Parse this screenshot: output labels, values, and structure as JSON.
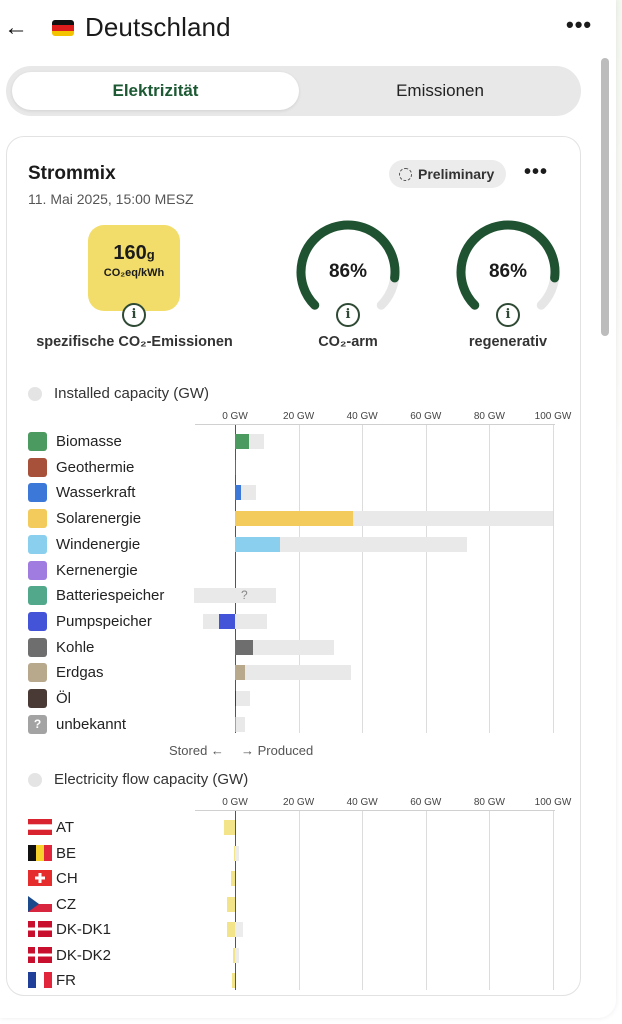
{
  "header": {
    "back_icon": "arrow-left-icon",
    "zone_name": "Deutschland",
    "more_icon": "more-horizontal-icon"
  },
  "tabs": [
    {
      "label": "Elektrizität",
      "active": true
    },
    {
      "label": "Emissionen",
      "active": false
    }
  ],
  "card": {
    "title": "Strommix",
    "date": "11. Mai 2025, 15:00 MESZ",
    "badge": "Preliminary",
    "co2": {
      "value": "160",
      "value_unit": "g",
      "unit": "CO₂eq/kWh",
      "label": "spezifische CO₂-Emissionen",
      "color": "#f2dd6b"
    },
    "low_carbon": {
      "percent": "86%",
      "fraction": 0.86,
      "label": "CO₂-arm"
    },
    "renewable": {
      "percent": "86%",
      "fraction": 0.86,
      "label": "regenerativ"
    },
    "gauge_color": "#1f5231"
  },
  "installed": {
    "title": "Installed capacity (GW)",
    "ticks": [
      "0 GW",
      "20 GW",
      "40 GW",
      "60 GW",
      "80 GW",
      "100 GW"
    ],
    "rows": [
      {
        "label": "Biomasse",
        "icon": "biomass-icon",
        "color": "#4b9a5f",
        "produced": 4.5,
        "capacity": 9.2
      },
      {
        "label": "Geothermie",
        "icon": "geothermal-icon",
        "color": "#a8513a",
        "produced": 0.1,
        "capacity": 0.2
      },
      {
        "label": "Wasserkraft",
        "icon": "hydro-icon",
        "color": "#3c78d8",
        "produced": 1.8,
        "capacity": 6.5
      },
      {
        "label": "Solarenergie",
        "icon": "solar-icon",
        "color": "#f2cb5c",
        "produced": 37,
        "capacity": 100
      },
      {
        "label": "Windenergie",
        "icon": "wind-icon",
        "color": "#8ad0ee",
        "produced": 14,
        "capacity": 73
      },
      {
        "label": "Kernenergie",
        "icon": "nuclear-icon",
        "color": "#a07be0",
        "produced": 0,
        "capacity": 0
      },
      {
        "label": "Batteriespeicher",
        "icon": "battery-icon",
        "color": "#52a88b",
        "produced": 0,
        "capacity": 13,
        "stored_capacity": 13,
        "unknown": true
      },
      {
        "label": "Pumpspeicher",
        "icon": "pumped-storage-icon",
        "color": "#4354d8",
        "produced": 0,
        "capacity": 10,
        "stored": 5,
        "stored_capacity": 10
      },
      {
        "label": "Kohle",
        "icon": "coal-icon",
        "color": "#6e6e6e",
        "produced": 5.8,
        "capacity": 31
      },
      {
        "label": "Erdgas",
        "icon": "gas-icon",
        "color": "#b8a88c",
        "produced": 3,
        "capacity": 36.5
      },
      {
        "label": "Öl",
        "icon": "oil-icon",
        "color": "#4a3a35",
        "produced": 0.4,
        "capacity": 4.8
      },
      {
        "label": "unbekannt",
        "icon": "unknown-icon",
        "color": "#a3a3a3",
        "produced": 0.3,
        "capacity": 3
      }
    ],
    "legend_stored": "Stored ←",
    "legend_produced": "→ Produced"
  },
  "flow": {
    "title": "Electricity flow capacity (GW)",
    "ticks": [
      "0 GW",
      "20 GW",
      "40 GW",
      "60 GW",
      "80 GW",
      "100 GW"
    ],
    "rows": [
      {
        "label": "AT",
        "flag": "flag-at",
        "import": 3.5,
        "capacity": 0
      },
      {
        "label": "BE",
        "flag": "flag-be",
        "import": 0.3,
        "capacity": 1.2
      },
      {
        "label": "CH",
        "flag": "flag-ch",
        "import": 1.2,
        "capacity": 0
      },
      {
        "label": "CZ",
        "flag": "flag-cz",
        "import": 2.5,
        "capacity": 0
      },
      {
        "label": "DK-DK1",
        "flag": "flag-dk",
        "import": 2.6,
        "capacity": 2.5
      },
      {
        "label": "DK-DK2",
        "flag": "flag-dk",
        "import": 0.6,
        "capacity": 1.3
      },
      {
        "label": "FR",
        "flag": "flag-fr",
        "import": 0.9,
        "capacity": 0
      }
    ]
  }
}
